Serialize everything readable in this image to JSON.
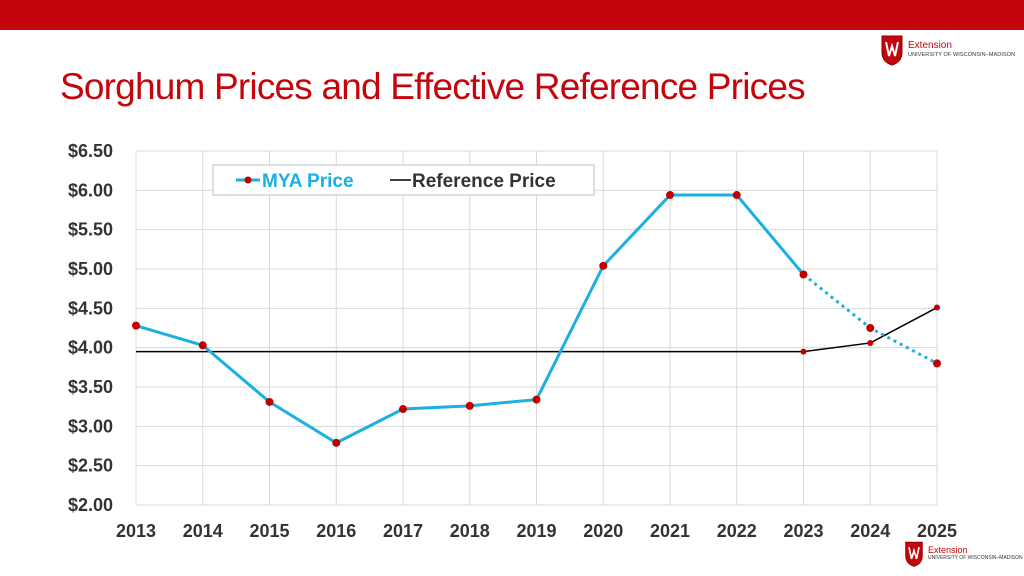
{
  "header": {
    "title": "Sorghum Prices and Effective Reference Prices"
  },
  "logo": {
    "name": "Extension",
    "org": "UNIVERSITY OF WISCONSIN–MADISON",
    "crest_letter": "W"
  },
  "colors": {
    "brand_red": "#c5050c",
    "mya_line": "#1ab0e0",
    "marker": "#c00000",
    "reference_line": "#000000",
    "grid": "#d9d9d9"
  },
  "chart_data": {
    "type": "line",
    "title": "Sorghum Prices and Effective Reference Prices",
    "categories": [
      "2013",
      "2014",
      "2015",
      "2016",
      "2017",
      "2018",
      "2019",
      "2020",
      "2021",
      "2022",
      "2023",
      "2024",
      "2025"
    ],
    "y_ticks": [
      "$2.00",
      "$2.50",
      "$3.00",
      "$3.50",
      "$4.00",
      "$4.50",
      "$5.00",
      "$5.50",
      "$6.00",
      "$6.50"
    ],
    "ylim": [
      2.0,
      6.5
    ],
    "grid": true,
    "legend_position": "top-left",
    "series": [
      {
        "name": "MYA Price",
        "values": [
          4.28,
          4.03,
          3.31,
          2.79,
          3.22,
          3.26,
          3.34,
          5.04,
          5.94,
          5.94,
          4.93,
          4.25,
          3.8
        ],
        "projected_from_index": 10
      },
      {
        "name": "Reference Price",
        "values": [
          3.95,
          3.95,
          3.95,
          3.95,
          3.95,
          3.95,
          3.95,
          3.95,
          3.95,
          3.95,
          3.95,
          4.06,
          4.51
        ],
        "marked_points": [
          10,
          11,
          12
        ]
      }
    ]
  }
}
